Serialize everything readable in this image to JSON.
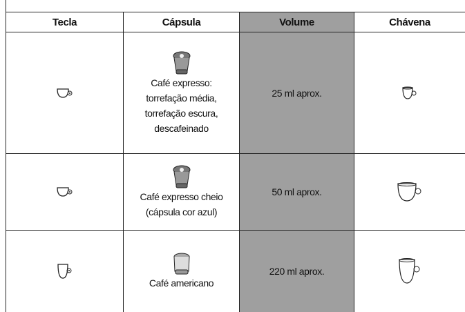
{
  "table": {
    "headers": [
      "Tecla",
      "Cápsula",
      "Volume",
      "Chávena"
    ],
    "rows": [
      {
        "capsule": [
          "Café expresso:",
          "torrefação média,",
          "torrefação escura,",
          "descafeinado"
        ],
        "volume": "25 ml aprox."
      },
      {
        "capsule": [
          "Café expresso cheio",
          "(cápsula cor azul)"
        ],
        "volume": "50 ml aprox."
      },
      {
        "capsule": [
          "Café americano"
        ],
        "volume": "220 ml aprox."
      }
    ]
  }
}
